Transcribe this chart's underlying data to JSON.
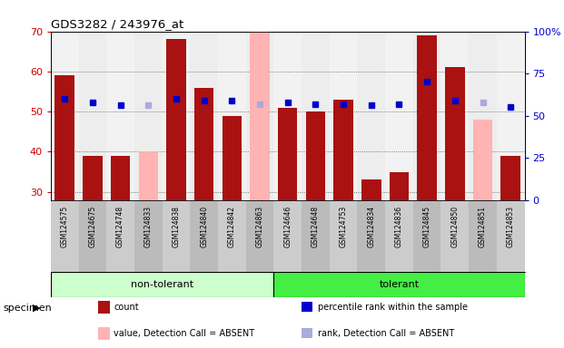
{
  "title": "GDS3282 / 243976_at",
  "samples": [
    "GSM124575",
    "GSM124675",
    "GSM124748",
    "GSM124833",
    "GSM124838",
    "GSM124840",
    "GSM124842",
    "GSM124863",
    "GSM124646",
    "GSM124648",
    "GSM124753",
    "GSM124834",
    "GSM124836",
    "GSM124845",
    "GSM124850",
    "GSM124851",
    "GSM124853"
  ],
  "non_tolerant_count": 8,
  "tolerant_count": 9,
  "count_values": [
    59,
    39,
    39,
    null,
    68,
    56,
    49,
    null,
    51,
    50,
    53,
    33,
    35,
    69,
    61,
    null,
    39
  ],
  "absent_bar_values": [
    null,
    null,
    null,
    40,
    null,
    null,
    null,
    70,
    null,
    null,
    null,
    null,
    null,
    null,
    null,
    48,
    null
  ],
  "percentile_rank": [
    60,
    58,
    56,
    null,
    60,
    59,
    59,
    null,
    58,
    57,
    57,
    56,
    57,
    70,
    59,
    null,
    55
  ],
  "absent_rank": [
    null,
    null,
    null,
    56,
    null,
    null,
    null,
    57,
    null,
    null,
    null,
    null,
    null,
    null,
    null,
    58,
    null
  ],
  "ylim": [
    28,
    70
  ],
  "right_ylim": [
    0,
    100
  ],
  "yticks_left": [
    30,
    40,
    50,
    60,
    70
  ],
  "yticks_right": [
    0,
    25,
    50,
    75,
    100
  ],
  "bar_color": "#aa1111",
  "absent_bar_color": "#ffb3b3",
  "rank_color": "#0000cc",
  "absent_rank_color": "#aaaadd",
  "group_colors": {
    "non-tolerant": "#ccffcc",
    "tolerant": "#44ee44"
  },
  "col_bg_even": "#cccccc",
  "col_bg_odd": "#bbbbbb",
  "legend_items": [
    {
      "label": "count",
      "color": "#aa1111",
      "type": "rect"
    },
    {
      "label": "percentile rank within the sample",
      "color": "#0000cc",
      "type": "square"
    },
    {
      "label": "value, Detection Call = ABSENT",
      "color": "#ffb3b3",
      "type": "rect"
    },
    {
      "label": "rank, Detection Call = ABSENT",
      "color": "#aaaadd",
      "type": "square"
    }
  ]
}
